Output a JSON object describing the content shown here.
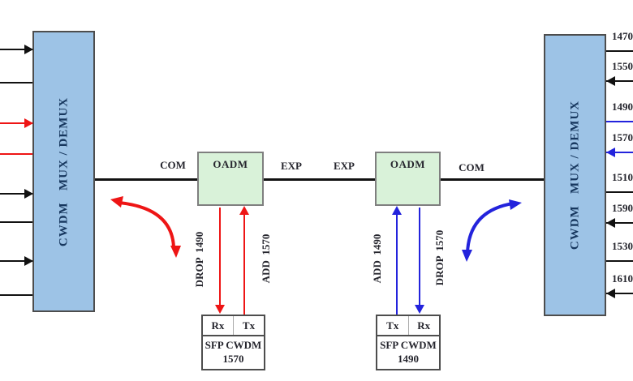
{
  "colors": {
    "mux_fill": "#9DC3E6",
    "mux_border": "#4d4d4d",
    "oadm_fill": "#D9F2D9",
    "oadm_border": "#7F7F7F",
    "red": "#EE1515",
    "blue": "#2323DC",
    "black": "#111111",
    "title_text": "#17375E"
  },
  "left_mux": {
    "label": "CWDM   MUX / DEMUX"
  },
  "right_mux": {
    "label": "CWDM   MUX / DEMUX"
  },
  "bus": {
    "com_left": "COM",
    "exp_left": "EXP",
    "exp_right": "EXP",
    "com_right": "COM"
  },
  "oadm_left": {
    "label": "OADM",
    "drop_label": "DROP  1490",
    "add_label": "ADD  1570"
  },
  "oadm_right": {
    "label": "OADM",
    "add_label": "ADD  1490",
    "drop_label": "DROP  1570"
  },
  "sfp_left": {
    "port_left": "Rx",
    "port_right": "Tx",
    "line1": "SFP CWDM",
    "line2": "1570"
  },
  "sfp_right": {
    "port_left": "Tx",
    "port_right": "Rx",
    "line1": "SFP CWDM",
    "line2": "1490"
  },
  "left_channels": [
    {
      "direction": "in",
      "color": "black"
    },
    {
      "direction": "out",
      "color": "black"
    },
    {
      "direction": "in",
      "color": "red"
    },
    {
      "direction": "out",
      "color": "red"
    },
    {
      "direction": "in",
      "color": "black"
    },
    {
      "direction": "out",
      "color": "black"
    },
    {
      "direction": "in",
      "color": "black"
    },
    {
      "direction": "out",
      "color": "black"
    }
  ],
  "right_channels": [
    {
      "label": "1470",
      "direction": "out",
      "color": "black"
    },
    {
      "label": "1550",
      "direction": "in",
      "color": "black"
    },
    {
      "label": "1490",
      "direction": "out",
      "color": "blue"
    },
    {
      "label": "1570",
      "direction": "in",
      "color": "blue"
    },
    {
      "label": "1510",
      "direction": "out",
      "color": "black"
    },
    {
      "label": "1590",
      "direction": "in",
      "color": "black"
    },
    {
      "label": "1530",
      "direction": "out",
      "color": "black"
    },
    {
      "label": "1610",
      "direction": "in",
      "color": "black"
    }
  ]
}
